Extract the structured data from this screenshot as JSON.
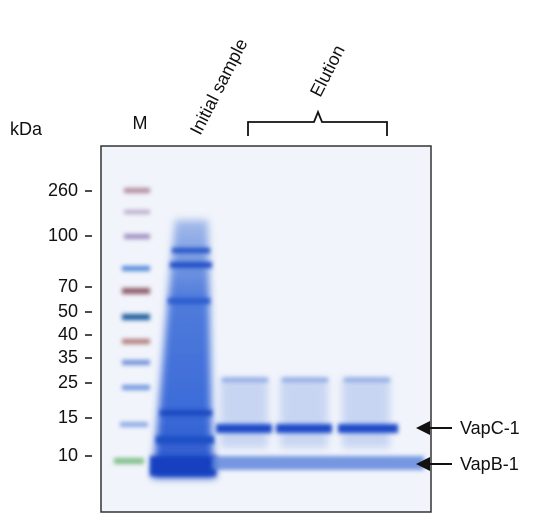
{
  "header": {
    "unit": "kDa",
    "marker_lane": "M",
    "lane_label": "Initial sample",
    "group_label": "Elution"
  },
  "markers": [
    "260",
    "100",
    "70",
    "50",
    "40",
    "35",
    "25",
    "15",
    "10"
  ],
  "bands": [
    "VapC-1",
    "VapB-1"
  ]
}
